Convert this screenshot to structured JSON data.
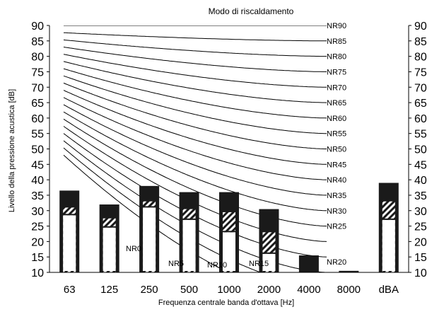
{
  "chart_data": {
    "type": "bar",
    "title": "Modo di riscaldamento",
    "xlabel": "Frequenza centrale banda d'ottava [Hz]",
    "ylabel": "Livello della pressione acustica [dB]",
    "ylim": [
      10,
      90
    ],
    "yticks": [
      10,
      15,
      20,
      25,
      30,
      35,
      40,
      45,
      50,
      55,
      60,
      65,
      70,
      75,
      80,
      85,
      90
    ],
    "categories": [
      "63",
      "125",
      "250",
      "500",
      "1000",
      "2000",
      "4000",
      "8000",
      "dBA"
    ],
    "grid": false,
    "colors": {
      "bar": "#1a1a1a",
      "hatch": "#1a1a1a",
      "curve": "#000000",
      "background": "#ffffff"
    },
    "series": [
      {
        "name": "",
        "values": [
          36.5,
          32,
          38,
          36,
          36,
          30.5,
          15.5,
          10.5,
          39
        ]
      },
      {
        "name": "",
        "values": [
          31,
          27.5,
          33,
          30.5,
          29.5,
          23,
          null,
          null,
          33
        ]
      },
      {
        "name": "",
        "values": [
          28.5,
          24.5,
          31,
          27,
          23,
          16,
          null,
          null,
          27
        ]
      }
    ],
    "nr_curves": {
      "labels": [
        "NR90",
        "NR85",
        "NR80",
        "NR75",
        "NR70",
        "NR65",
        "NR60",
        "NR55",
        "NR50",
        "NR45",
        "NR40",
        "NR35",
        "NR30",
        "NR25",
        "NR20",
        "NR15",
        "NR10",
        "NR5",
        "NR0"
      ]
    }
  }
}
